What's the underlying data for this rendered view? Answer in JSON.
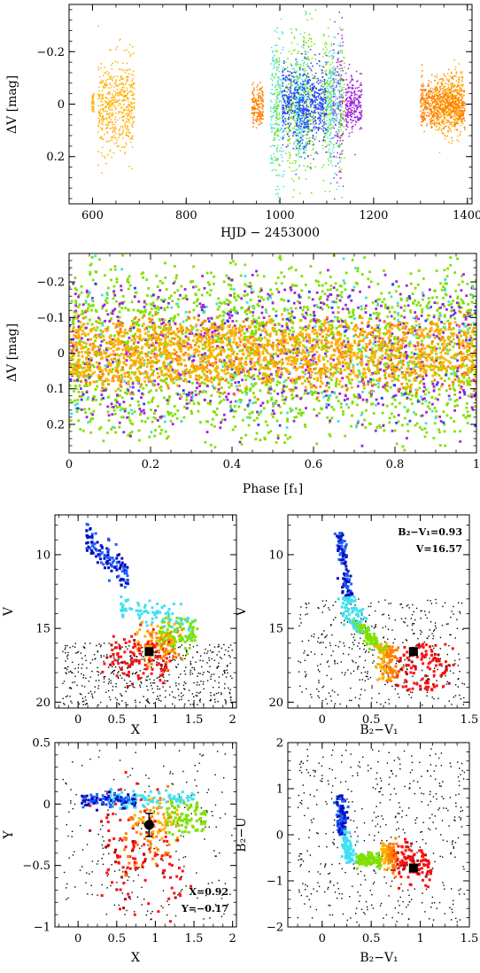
{
  "chart_data": [
    {
      "type": "scatter",
      "id": "lightcurve",
      "xlabel": "HJD − 2453000",
      "ylabel": "ΔV [mag]",
      "xlim": [
        550,
        1410
      ],
      "ylim": [
        0.38,
        -0.38
      ],
      "yinverted": true,
      "xticks": [
        600,
        800,
        1000,
        1200,
        1400
      ],
      "yticks": [
        -0.2,
        0,
        0.2
      ],
      "xtick_labels": [
        "600",
        "800",
        "1000",
        "1200",
        "1400"
      ],
      "ytick_labels": [
        "−0.2",
        "0",
        "0.2"
      ],
      "grid": false,
      "series": [
        {
          "color": "#ffb000",
          "segments": [
            [
              598,
              603,
              0.05
            ],
            [
              612,
              690,
              0.19
            ],
            [
              1330,
              1390,
              0.13
            ]
          ]
        },
        {
          "color": "#ff8000",
          "segments": [
            [
              940,
              965,
              0.09
            ],
            [
              1300,
              1395,
              0.1
            ]
          ]
        },
        {
          "color": "#7fe000",
          "segments": [
            [
              988,
              1000,
              0.31
            ],
            [
              1012,
              1045,
              0.3
            ],
            [
              1050,
              1078,
              0.3
            ],
            [
              1090,
              1115,
              0.31
            ],
            [
              1125,
              1138,
              0.3
            ]
          ]
        },
        {
          "color": "#a020e0",
          "segments": [
            [
              1113,
              1135,
              0.33
            ],
            [
              1140,
              1175,
              0.12
            ]
          ]
        },
        {
          "color": "#40e0e0",
          "segments": [
            [
              980,
              1010,
              0.33
            ],
            [
              1030,
              1060,
              0.25
            ],
            [
              1100,
              1130,
              0.28
            ]
          ]
        },
        {
          "color": "#2040ff",
          "segments": [
            [
              1005,
              1100,
              0.18
            ]
          ]
        }
      ]
    },
    {
      "type": "scatter",
      "id": "phase",
      "xlabel": "Phase [f₁]",
      "ylabel": "ΔV [mag]",
      "xlim": [
        0,
        1
      ],
      "ylim": [
        0.28,
        -0.28
      ],
      "yinverted": true,
      "xticks": [
        0,
        0.2,
        0.4,
        0.6,
        0.8,
        1
      ],
      "yticks": [
        -0.2,
        -0.1,
        0,
        0.1,
        0.2
      ],
      "xtick_labels": [
        "0",
        "0.2",
        "0.4",
        "0.6",
        "0.8",
        "1"
      ],
      "ytick_labels": [
        "−0.2",
        "−0.1",
        "0",
        "0.1",
        "0.2"
      ],
      "grid": false,
      "series": [
        {
          "color": "#7fe000",
          "spread": 0.2
        },
        {
          "color": "#a020e0",
          "spread": 0.17
        },
        {
          "color": "#40e0e0",
          "spread": 0.18
        },
        {
          "color": "#2040ff",
          "spread": 0.15
        },
        {
          "color": "#ff8000",
          "spread": 0.09
        },
        {
          "color": "#ffb000",
          "spread": 0.075
        }
      ]
    },
    {
      "type": "scatter",
      "id": "cmd-x",
      "xlabel": "X",
      "ylabel": "V",
      "xlim": [
        -0.3,
        2.05
      ],
      "ylim": [
        20.4,
        7.3
      ],
      "yinverted": true,
      "xticks": [
        0,
        0.5,
        1,
        1.5,
        2
      ],
      "yticks": [
        10,
        15,
        20
      ],
      "xtick_labels": [
        "0",
        "0.5",
        "1",
        "1.5",
        "2"
      ],
      "ytick_labels": [
        "10",
        "15",
        "20"
      ],
      "grid": false,
      "highlight": {
        "x": 0.92,
        "y": 16.57
      },
      "annotations": []
    },
    {
      "type": "scatter",
      "id": "cmd-bv",
      "xlabel": "B₂−V₁",
      "ylabel": "V",
      "xlim": [
        -0.35,
        1.5
      ],
      "ylim": [
        20.4,
        7.3
      ],
      "yinverted": true,
      "xticks": [
        0,
        0.5,
        1,
        1.5
      ],
      "yticks": [
        10,
        15,
        20
      ],
      "xtick_labels": [
        "0",
        "0.5",
        "1",
        "1.5"
      ],
      "ytick_labels": [
        "10",
        "15",
        "20"
      ],
      "grid": false,
      "highlight": {
        "x": 0.93,
        "y": 16.57
      },
      "annotations": [
        "B₂−V₁=0.93",
        "V=16.57"
      ]
    },
    {
      "type": "scatter",
      "id": "xy",
      "xlabel": "X",
      "ylabel": "Y",
      "xlim": [
        -0.3,
        2.05
      ],
      "ylim": [
        -1.0,
        0.5
      ],
      "yinverted": false,
      "xticks": [
        0,
        0.5,
        1,
        1.5,
        2
      ],
      "yticks": [
        -1,
        -0.5,
        0,
        0.5
      ],
      "xtick_labels": [
        "0",
        "0.5",
        "1",
        "1.5",
        "2"
      ],
      "ytick_labels": [
        "−1",
        "−0.5",
        "0",
        "0.5"
      ],
      "grid": false,
      "highlight": {
        "x": 0.92,
        "y": -0.17
      },
      "annotations": [
        "X=0.92",
        "Y=−0.17"
      ]
    },
    {
      "type": "scatter",
      "id": "ccd",
      "xlabel": "B₂−V₁",
      "ylabel": "B₂−U",
      "xlim": [
        -0.35,
        1.5
      ],
      "ylim": [
        -2.0,
        2.0
      ],
      "yinverted": false,
      "xticks": [
        0,
        0.5,
        1,
        1.5
      ],
      "yticks": [
        -2,
        -1,
        0,
        1,
        2
      ],
      "xtick_labels": [
        "0",
        "0.5",
        "1",
        "1.5"
      ],
      "ytick_labels": [
        "−2",
        "−1",
        "0",
        "1",
        "2"
      ],
      "grid": false,
      "highlight": {
        "x": 0.93,
        "y": -0.72
      },
      "annotations": []
    }
  ],
  "sequence_colors": [
    "#0010c0",
    "#2060ff",
    "#40e0f0",
    "#7fe000",
    "#ffb000",
    "#ff8000",
    "#ff1010",
    "#b01010"
  ],
  "field_color": "#000000"
}
